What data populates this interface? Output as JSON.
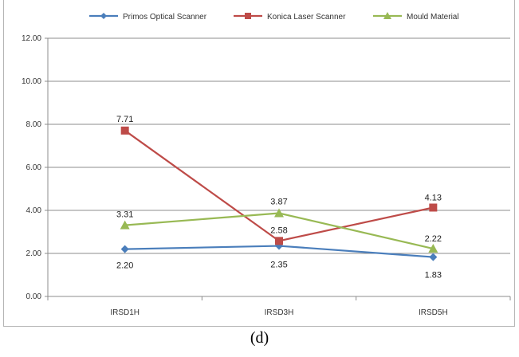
{
  "chart_data": {
    "type": "line",
    "categories": [
      "IRSD1H",
      "IRSD3H",
      "IRSD5H"
    ],
    "series": [
      {
        "name": "Primos Optical Scanner",
        "values": [
          2.2,
          2.35,
          1.83
        ],
        "labels": [
          "2.20",
          "2.35",
          "1.83"
        ],
        "color": "#4a7ebb",
        "marker": "diamond"
      },
      {
        "name": "Konica Laser Scanner",
        "values": [
          7.71,
          2.58,
          4.13
        ],
        "labels": [
          "7.71",
          "2.58",
          "4.13"
        ],
        "color": "#be4b48",
        "marker": "square"
      },
      {
        "name": "Mould Material",
        "values": [
          3.31,
          3.87,
          2.22
        ],
        "labels": [
          "3.31",
          "3.87",
          "2.22"
        ],
        "color": "#98b954",
        "marker": "triangle"
      }
    ],
    "ylim": [
      0,
      12
    ],
    "yticks": [
      "0.00",
      "2.00",
      "4.00",
      "6.00",
      "8.00",
      "10.00",
      "12.00"
    ],
    "grid": true,
    "legend": "top"
  },
  "caption": "(d)"
}
